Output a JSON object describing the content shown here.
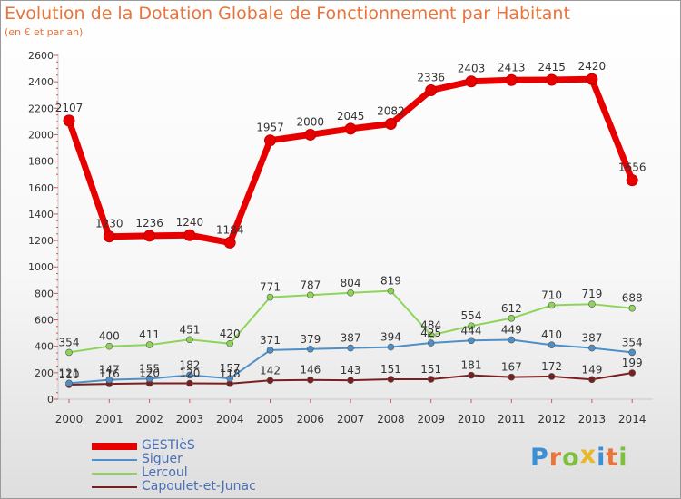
{
  "header": {
    "title": "Evolution de la Dotation Globale de Fonctionnement par Habitant",
    "subtitle": "(en € et par an)"
  },
  "logo": {
    "letters": [
      "P",
      "r",
      "o",
      "x",
      "i",
      "t",
      "i"
    ],
    "colors": [
      "#3b8fd4",
      "#e8743a",
      "#7fbf3f",
      "#e8b82a",
      "#3b8fd4",
      "#e8743a",
      "#7fbf3f"
    ]
  },
  "chart_data": {
    "type": "line",
    "title": "Evolution de la Dotation Globale de Fonctionnement par Habitant",
    "subtitle": "(en € et par an)",
    "xlabel": "",
    "ylabel": "",
    "ylim": [
      0,
      2600
    ],
    "yticks": [
      0,
      200,
      400,
      600,
      800,
      1000,
      1200,
      1400,
      1600,
      1800,
      2000,
      2200,
      2400,
      2600
    ],
    "grid": false,
    "legend_position": "bottom-left",
    "x": [
      "2000",
      "2001",
      "2002",
      "2003",
      "2004",
      "2005",
      "2006",
      "2007",
      "2008",
      "2009",
      "2010",
      "2011",
      "2012",
      "2013",
      "2014"
    ],
    "series": [
      {
        "name": "GESTIèS",
        "color": "#e80000",
        "values": [
          2107,
          1230,
          1236,
          1240,
          1184,
          1957,
          2000,
          2045,
          2082,
          2336,
          2403,
          2413,
          2415,
          2420,
          1656
        ],
        "labels": [
          "2107",
          "1230",
          "1236",
          "1240",
          "1184",
          "1957",
          "2000",
          "2045",
          "2082",
          "2336",
          "2403",
          "2413",
          "2415",
          "2420",
          "1656"
        ]
      },
      {
        "name": "Siguer",
        "color": "#4f8fc7",
        "values": [
          121,
          147,
          155,
          182,
          157,
          371,
          379,
          387,
          394,
          425,
          444,
          449,
          410,
          387,
          354
        ],
        "labels": [
          "121",
          "147",
          "155",
          "182",
          "157",
          "371",
          "379",
          "387",
          "394",
          "425",
          "444",
          "449",
          "410",
          "387",
          "354"
        ]
      },
      {
        "name": "Lercoul",
        "color": "#8fd45a",
        "values": [
          354,
          400,
          411,
          451,
          420,
          771,
          787,
          804,
          819,
          484,
          554,
          612,
          710,
          719,
          688
        ],
        "labels": [
          "354",
          "400",
          "411",
          "451",
          "420",
          "771",
          "787",
          "804",
          "819",
          "484",
          "554",
          "612",
          "710",
          "719",
          "688"
        ]
      },
      {
        "name": "Capoulet-et-Junac",
        "color": "#7a1f1f",
        "values": [
          110,
          116,
          120,
          120,
          118,
          142,
          146,
          143,
          151,
          151,
          181,
          167,
          172,
          149,
          199
        ],
        "labels": [
          "110",
          "116",
          "120",
          "120",
          "118",
          "142",
          "146",
          "143",
          "151",
          "151",
          "181",
          "167",
          "172",
          "149",
          "199"
        ]
      }
    ]
  }
}
